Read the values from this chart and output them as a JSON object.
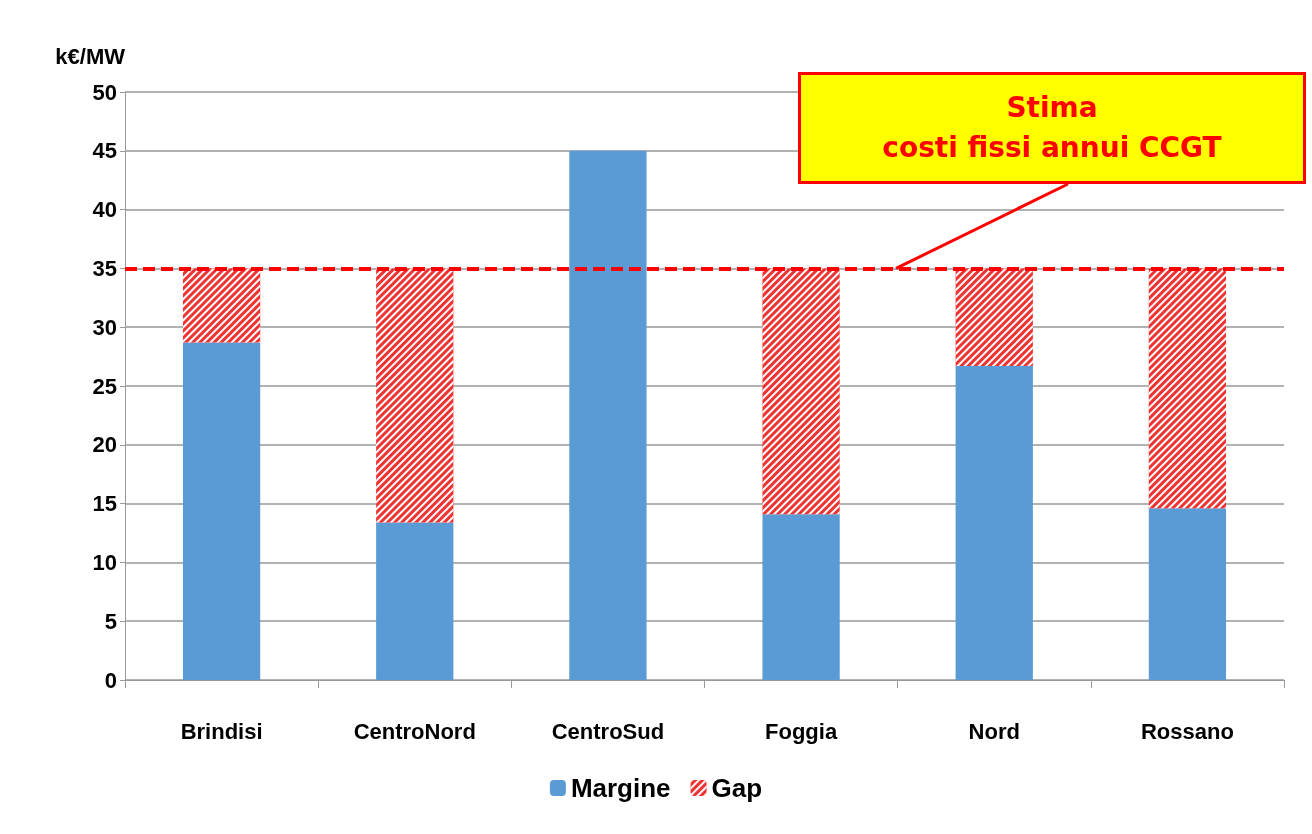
{
  "chart_data": {
    "type": "bar",
    "ylabel": "k€/MW",
    "stacked": true,
    "categories": [
      "Brindisi",
      "CentroNord",
      "CentroSud",
      "Foggia",
      "Nord",
      "Rossano"
    ],
    "series": [
      {
        "name": "Margine",
        "color": "#5b9bd5",
        "values": [
          28.7,
          13.4,
          45,
          14.1,
          26.7,
          14.6
        ]
      },
      {
        "name": "Gap",
        "color": "#ee3333",
        "values": [
          6.3,
          21.6,
          0,
          20.9,
          8.3,
          20.4
        ]
      }
    ],
    "ylim": [
      0,
      50
    ],
    "yticks": [
      0,
      5,
      10,
      15,
      20,
      25,
      30,
      35,
      40,
      45,
      50
    ],
    "grid": "y",
    "legend": "bottom",
    "ref_lines": [
      {
        "axis": "y",
        "value": 35,
        "label": "Stima\ncosti fissi annui CCGT",
        "color": "#ff0000",
        "line_style": "dashed"
      }
    ]
  }
}
